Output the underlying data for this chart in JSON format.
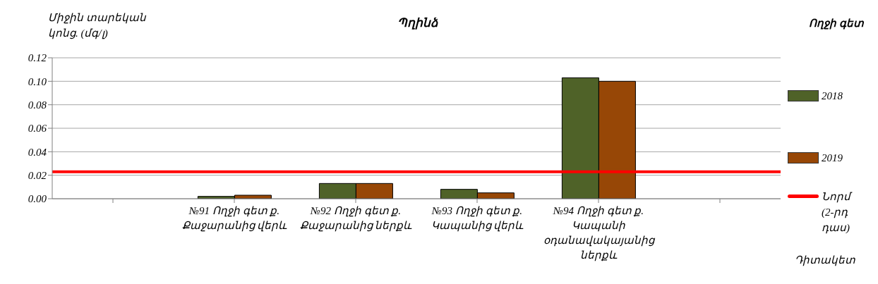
{
  "chart_data": {
    "type": "bar",
    "title": "Պղինձ",
    "ylabel": "Միջին տարեկան կոնց. (մգ/լ)",
    "xlabel": "Դիտակետ",
    "legend_title": "Ողջի գետ",
    "categories": [
      null,
      "№91 Ողջի գետ ք. Քաջարանից վերև",
      "№92 Ողջի գետ ք. Քաջարանից ներքև",
      "№93 Ողջի գետ ք. Կապանից վերև",
      "№94 Ողջի գետ ք. Կապանի օդանավակայանից ներքև",
      null
    ],
    "series": [
      {
        "name": "2018",
        "color": "#4f6228",
        "values": [
          null,
          0.002,
          0.013,
          0.008,
          0.103,
          null
        ]
      },
      {
        "name": "2019",
        "color": "#974706",
        "values": [
          null,
          0.003,
          0.013,
          0.005,
          0.1,
          null
        ]
      }
    ],
    "ref_lines": [
      {
        "axis": "y",
        "value": 0.023,
        "label": "Նորմ (2-րդ դաս)",
        "color": "#ff0000"
      }
    ],
    "ylim": [
      0,
      0.12
    ],
    "yticks": [
      {
        "value": 0,
        "label": "0.00"
      },
      {
        "value": 0.02,
        "label": "0.02"
      },
      {
        "value": 0.04,
        "label": "0.04"
      },
      {
        "value": 0.06,
        "label": "0.06"
      },
      {
        "value": 0.08,
        "label": "0.08"
      },
      {
        "value": 0.1,
        "label": "0.10"
      },
      {
        "value": 0.12,
        "label": "0.12"
      }
    ],
    "grid": "y",
    "legend": "right"
  }
}
